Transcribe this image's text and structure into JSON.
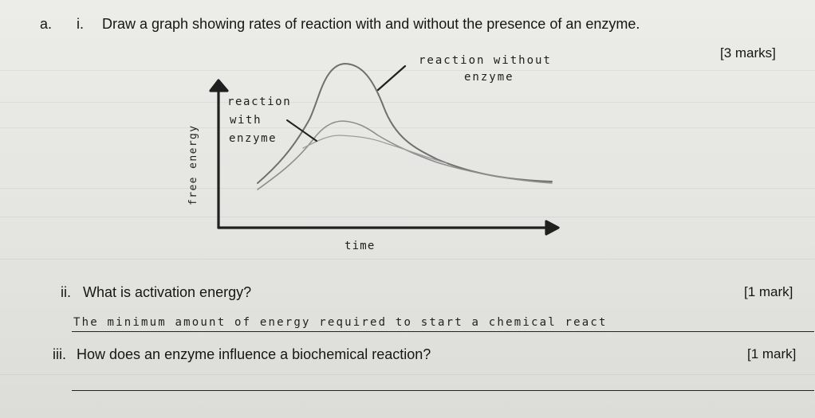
{
  "questions": {
    "a_label": "a.",
    "i_label": "i.",
    "i_text": "Draw a graph showing rates of reaction with and without the presence of an enzyme.",
    "i_marks": "[3 marks]",
    "ii_label": "ii.",
    "ii_text": "What is activation energy?",
    "ii_marks": "[1 mark]",
    "ii_answer": "The minimum amount of energy required to start a chemical react",
    "iii_label": "iii.",
    "iii_text": "How does an enzyme influence a biochemical reaction?",
    "iii_marks": "[1 mark]"
  },
  "graph": {
    "y_label": "free energy",
    "x_label": "time",
    "label_without_1": "reaction without",
    "label_without_2": "enzyme",
    "label_with_1": "reaction",
    "label_with_2": "with",
    "label_with_3": "enzyme"
  },
  "colors": {
    "paper": "#e6e6e3",
    "ink": "#161616",
    "pencil": "#2a2a2a",
    "curve_without": "#6f6f6f",
    "curve_with": "#8d8d8d"
  }
}
